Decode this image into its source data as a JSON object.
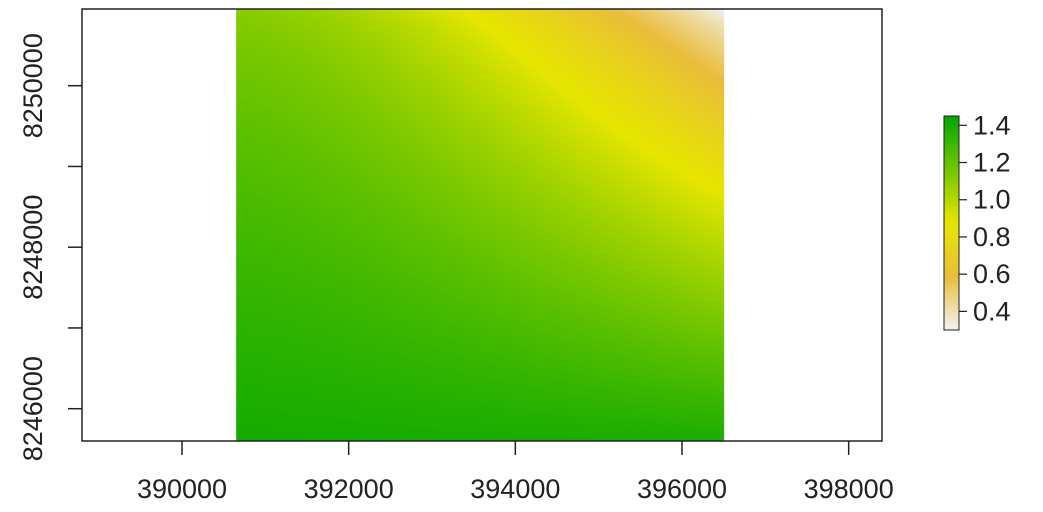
{
  "chart_data": {
    "type": "heatmap",
    "title": "",
    "xlabel": "",
    "ylabel": "",
    "xlim": [
      388800,
      398400
    ],
    "ylim": [
      8245600,
      8250950
    ],
    "x_ticks": [
      390000,
      392000,
      394000,
      396000,
      398000
    ],
    "x_tick_labels": [
      "390000",
      "392000",
      "394000",
      "396000",
      "398000"
    ],
    "y_ticks": [
      8246000,
      8247000,
      8248000,
      8249000,
      8250000
    ],
    "y_tick_labels": [
      "8246000",
      "",
      "8248000",
      "",
      "8250000"
    ],
    "raster_extent": {
      "xmin": 390650,
      "xmax": 396500,
      "ymin": 8245600,
      "ymax": 8250950
    },
    "value_range": [
      0.3,
      1.45
    ],
    "corner_values": {
      "bottom_left": 1.4,
      "bottom_right": 1.38,
      "top_left": 1.1,
      "top_right": 0.3
    },
    "legend": {
      "placement": "right",
      "ticks": [
        1.4,
        1.2,
        1.0,
        0.8,
        0.6,
        0.4
      ],
      "tick_labels": [
        "1.4",
        "1.2",
        "1.0",
        "0.8",
        "0.6",
        "0.4"
      ],
      "min": 0.3,
      "max": 1.45
    },
    "colormap": "terrain",
    "colors": {
      "high": "#00a600",
      "mid": "#e6e600",
      "low_mid": "#e9bd3a",
      "low": "#f2f2f2"
    },
    "grid": false
  }
}
